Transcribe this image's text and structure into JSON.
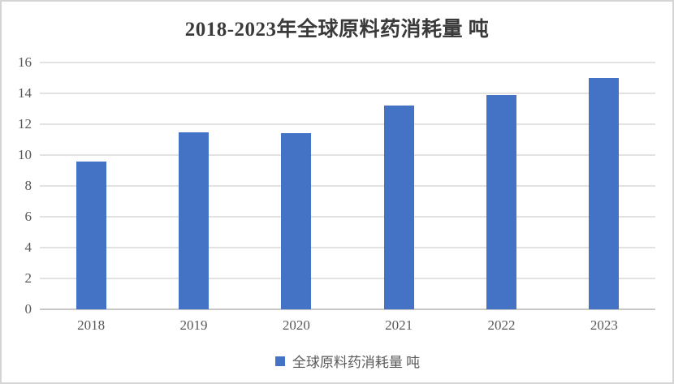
{
  "window": {
    "background": "#ffffff",
    "border_color": "#d5d5d5"
  },
  "chart_data": {
    "type": "bar",
    "title": "2018-2023年全球原料药消耗量 吨",
    "categories": [
      "2018",
      "2019",
      "2020",
      "2021",
      "2022",
      "2023"
    ],
    "series": [
      {
        "name": "全球原料药消耗量 吨",
        "values": [
          9.6,
          11.5,
          11.4,
          13.2,
          13.9,
          15.0
        ]
      }
    ],
    "xlabel": "",
    "ylabel": "",
    "ylim": [
      0,
      16
    ],
    "yticks": [
      0,
      2,
      4,
      6,
      8,
      10,
      12,
      14,
      16
    ],
    "grid": true,
    "legend_position": "bottom",
    "colors": {
      "bar": "#4472C4",
      "gridline": "#e2e2e2",
      "axis_line": "#c8c8c8",
      "tick_label": "#595959",
      "title": "#3a3a3a"
    }
  },
  "legend": {
    "swatch_color": "#4472C4",
    "label": "全球原料药消耗量 吨"
  }
}
